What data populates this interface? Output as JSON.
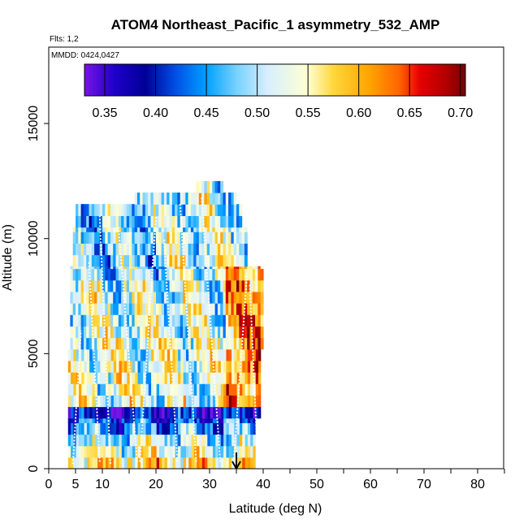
{
  "chart_data": {
    "type": "heatmap",
    "title": "ATOM4 Northeast_Pacific_1 asymmetry_532_AMP",
    "flights_note": "Flts: 1,2",
    "dates_note": "MMDD: 0424,0427",
    "xlabel": "Latitude (deg N)",
    "ylabel": "Altitude (m)",
    "xlim": [
      0,
      85
    ],
    "ylim": [
      0,
      18000
    ],
    "x_ticks": [
      0,
      5,
      10,
      20,
      30,
      40,
      50,
      60,
      70,
      80
    ],
    "y_ticks": [
      0,
      5000,
      10000,
      15000
    ],
    "colorbar": {
      "ticks": [
        0.35,
        0.4,
        0.45,
        0.5,
        0.55,
        0.6,
        0.65,
        0.7
      ],
      "range": [
        0.33,
        0.705
      ],
      "tick_labels": [
        "0.35",
        "0.40",
        "0.45",
        "0.50",
        "0.55",
        "0.60",
        "0.65",
        "0.70"
      ]
    },
    "arrow_marker_latitude": 35,
    "coverage": [
      {
        "lat_min": 3.6,
        "lat_max": 38.5,
        "alt_min": 0,
        "alt_max": 2200
      },
      {
        "lat_min": 3.6,
        "lat_max": 39.5,
        "alt_min": 2200,
        "alt_max": 5200
      },
      {
        "lat_min": 4.0,
        "lat_max": 40.0,
        "alt_min": 5200,
        "alt_max": 8800
      },
      {
        "lat_min": 4.5,
        "lat_max": 37.0,
        "alt_min": 8800,
        "alt_max": 10500
      },
      {
        "lat_min": 5.0,
        "lat_max": 36.0,
        "alt_min": 10500,
        "alt_max": 11500
      },
      {
        "lat_min": 16.0,
        "lat_max": 35.0,
        "alt_min": 11500,
        "alt_max": 12000
      },
      {
        "lat_min": 27.5,
        "lat_max": 32.5,
        "alt_min": 12000,
        "alt_max": 12500
      }
    ],
    "profiles": [
      {
        "lat_start": 4.5,
        "lat_end": 6.0,
        "alt_start": 200,
        "alt_end": 6000
      },
      {
        "lat_start": 9.5,
        "lat_end": 7.5,
        "alt_start": 300,
        "alt_end": 9000
      },
      {
        "lat_start": 9.5,
        "lat_end": 11.5,
        "alt_start": 11000,
        "alt_end": 200
      },
      {
        "lat_start": 16.5,
        "lat_end": 13.0,
        "alt_start": 300,
        "alt_end": 10500
      },
      {
        "lat_start": 17.0,
        "lat_end": 20.0,
        "alt_start": 300,
        "alt_end": 11000
      },
      {
        "lat_start": 24.0,
        "lat_end": 21.5,
        "alt_start": 300,
        "alt_end": 10000
      },
      {
        "lat_start": 24.5,
        "lat_end": 27.5,
        "alt_start": 11500,
        "alt_end": 300
      },
      {
        "lat_start": 32.0,
        "lat_end": 28.5,
        "alt_start": 300,
        "alt_end": 11800
      },
      {
        "lat_start": 34.5,
        "lat_end": 37.0,
        "alt_start": 300,
        "alt_end": 8500
      },
      {
        "lat_start": 39.0,
        "lat_end": 37.5,
        "alt_start": 300,
        "alt_end": 8000
      }
    ]
  }
}
